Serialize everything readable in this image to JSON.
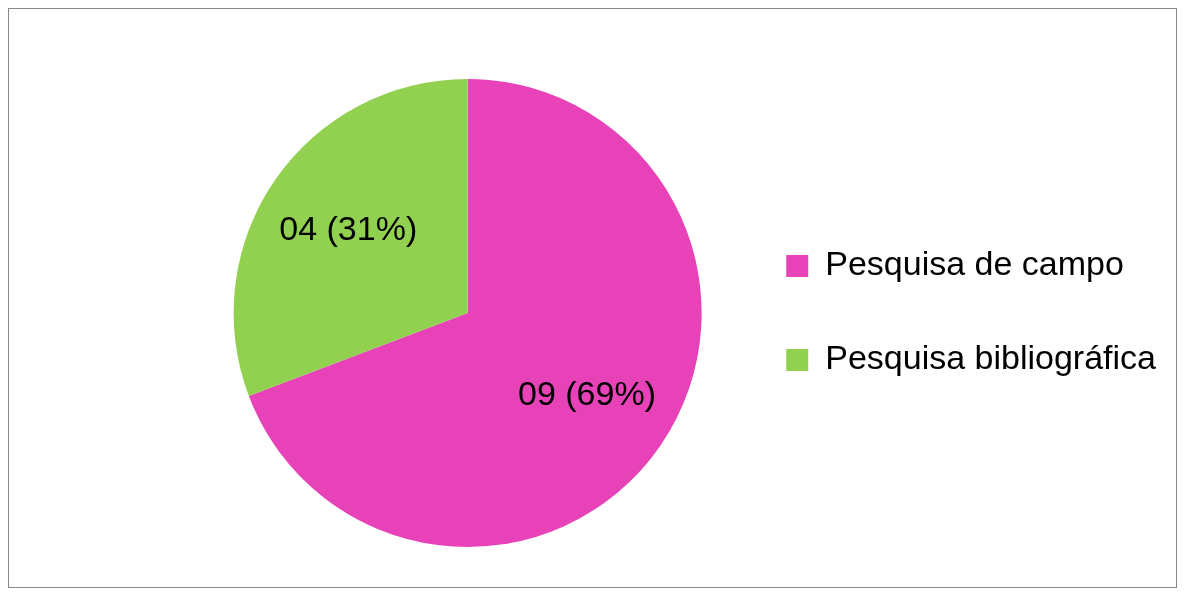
{
  "chart_data": {
    "type": "pie",
    "categories": [
      "Pesquisa de campo",
      "Pesquisa bibliográfica"
    ],
    "values": [
      9,
      4
    ],
    "colors": [
      "#e842b8",
      "#92d050"
    ],
    "value_labels": [
      "09 (69%)",
      "04 (31%)"
    ],
    "legend": "right"
  }
}
